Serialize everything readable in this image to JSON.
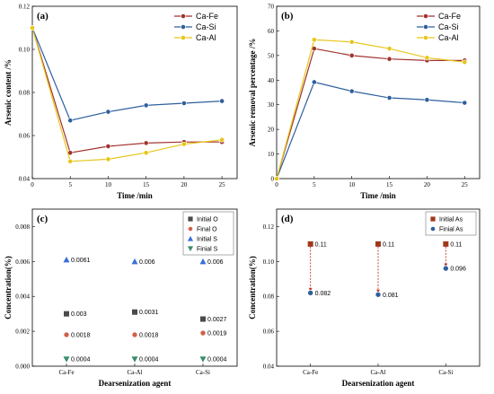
{
  "chart_data": [
    {
      "panel": "(a)",
      "type": "line",
      "xlabel": "Time /min",
      "ylabel": "Arsenic content /%",
      "xlim": [
        0,
        27
      ],
      "ylim": [
        0.04,
        0.12
      ],
      "xticks": [
        "0",
        "5",
        "10",
        "15",
        "20",
        "25"
      ],
      "yticks": [
        "0.04",
        "0.06",
        "0.08",
        "0.10",
        "0.12"
      ],
      "legend_position": "top-right",
      "x": [
        0,
        5,
        10,
        15,
        20,
        25
      ],
      "series": [
        {
          "name": "Ca-Fe",
          "color": "#a0322d",
          "values": [
            0.11,
            0.052,
            0.055,
            0.0565,
            0.057,
            0.057
          ]
        },
        {
          "name": "Ca-Si",
          "color": "#2e5f9e",
          "values": [
            0.11,
            0.067,
            0.071,
            0.074,
            0.075,
            0.076
          ]
        },
        {
          "name": "Ca-Al",
          "color": "#e6c619",
          "values": [
            0.11,
            0.048,
            0.049,
            0.052,
            0.056,
            0.058
          ]
        }
      ]
    },
    {
      "panel": "(b)",
      "type": "line",
      "xlabel": "Time /min",
      "ylabel": "Arsenic removal percentage /%",
      "xlim": [
        0,
        27
      ],
      "ylim": [
        0,
        70
      ],
      "xticks": [
        "0",
        "5",
        "10",
        "15",
        "20",
        "25"
      ],
      "yticks": [
        "0",
        "10",
        "20",
        "30",
        "40",
        "50",
        "60",
        "70"
      ],
      "legend_position": "top-right",
      "x": [
        0,
        5,
        10,
        15,
        20,
        25
      ],
      "series": [
        {
          "name": "Ca-Fe",
          "color": "#a0322d",
          "values": [
            0,
            52.8,
            50,
            48.6,
            48,
            48
          ]
        },
        {
          "name": "Ca-Si",
          "color": "#2e5f9e",
          "values": [
            0,
            39.2,
            35.5,
            32.8,
            32,
            30.8
          ]
        },
        {
          "name": "Ca-Al",
          "color": "#e6c619",
          "values": [
            0,
            56.4,
            55.5,
            52.8,
            49.1,
            47.3
          ]
        }
      ]
    },
    {
      "panel": "(c)",
      "type": "scatter",
      "xlabel": "Dearsenization agent",
      "ylabel": "Concentration(%)",
      "categories": [
        "Ca-Fe",
        "Ca-Al",
        "Ca-Si"
      ],
      "ylim": [
        0,
        0.009
      ],
      "yticks": [
        "0.000",
        "0.002",
        "0.004",
        "0.006",
        "0.008"
      ],
      "legend_position": "top-right",
      "series": [
        {
          "name": "Initial O",
          "color": "#4a4a4a",
          "marker": "square",
          "values": [
            0.003,
            0.0031,
            0.0027
          ],
          "labels": [
            "0.003",
            "0.0031",
            "0.0027"
          ]
        },
        {
          "name": "Final O",
          "color": "#d2604a",
          "marker": "circle",
          "values": [
            0.0018,
            0.0018,
            0.0019
          ],
          "labels": [
            "0.0018",
            "0.0018",
            "0.0019"
          ]
        },
        {
          "name": "Initial S",
          "color": "#3a6fd8",
          "marker": "triangle-up",
          "values": [
            0.0061,
            0.006,
            0.006
          ],
          "labels": [
            "0.0061",
            "0.006",
            "0.006"
          ]
        },
        {
          "name": "Finial S",
          "color": "#3a8f6a",
          "marker": "triangle-down",
          "values": [
            0.0004,
            0.0004,
            0.0004
          ],
          "labels": [
            "0.0004",
            "0.0004",
            "0.0004"
          ]
        }
      ]
    },
    {
      "panel": "(d)",
      "type": "scatter",
      "xlabel": "Dearsenization agent",
      "ylabel": "Concentration(%)",
      "categories": [
        "Ca-Fe",
        "Ca-Al",
        "Ca-Si"
      ],
      "ylim": [
        0.04,
        0.13
      ],
      "yticks": [
        "0.04",
        "0.06",
        "0.08",
        "0.10",
        "0.12"
      ],
      "legend_position": "top-right",
      "series": [
        {
          "name": "Initial As",
          "color": "#a0381a",
          "marker": "square",
          "values": [
            0.11,
            0.11,
            0.11
          ],
          "labels": [
            "0.11",
            "0.11",
            "0.11"
          ]
        },
        {
          "name": "Finial As",
          "color": "#2e5f9e",
          "marker": "circle",
          "values": [
            0.082,
            0.081,
            0.096
          ],
          "labels": [
            "0.082",
            "0.081",
            "0.096"
          ]
        }
      ]
    }
  ]
}
